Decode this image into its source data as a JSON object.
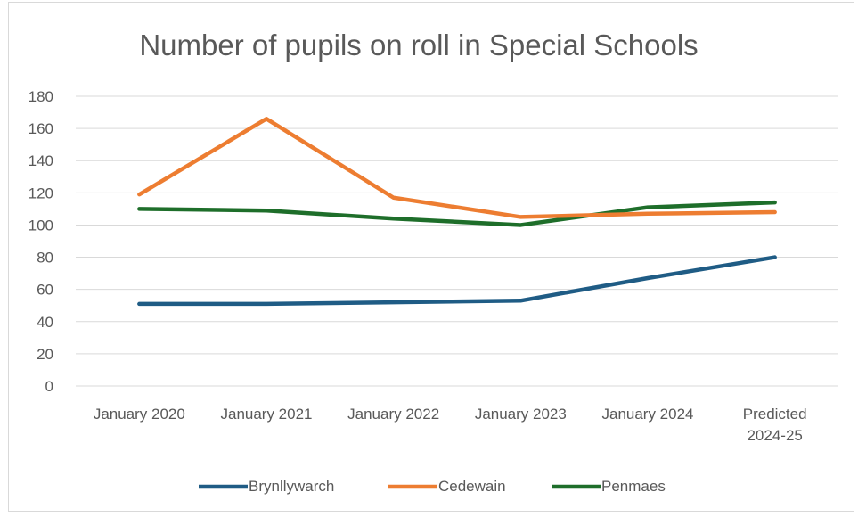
{
  "chart_data": {
    "type": "line",
    "title": "Number of pupils on roll in Special Schools",
    "xlabel": "",
    "ylabel": "",
    "categories": [
      [
        "January 2020"
      ],
      [
        "January 2021"
      ],
      [
        "January 2022"
      ],
      [
        "January 2023"
      ],
      [
        "January 2024"
      ],
      [
        "Predicted",
        "2024-25"
      ]
    ],
    "ylim": [
      0,
      180
    ],
    "yticks": [
      "0",
      "20",
      "40",
      "60",
      "80",
      "100",
      "120",
      "140",
      "160",
      "180"
    ],
    "grid": true,
    "legend_position": "bottom",
    "series": [
      {
        "name": "Brynllywarch",
        "color": "#1f5c85",
        "values": [
          51,
          51,
          52,
          53,
          67,
          80
        ]
      },
      {
        "name": "Cedewain",
        "color": "#ed7d31",
        "values": [
          119,
          166,
          117,
          105,
          107,
          108
        ]
      },
      {
        "name": "Penmaes",
        "color": "#1e6e2a",
        "values": [
          110,
          109,
          104,
          100,
          111,
          114
        ]
      }
    ]
  }
}
